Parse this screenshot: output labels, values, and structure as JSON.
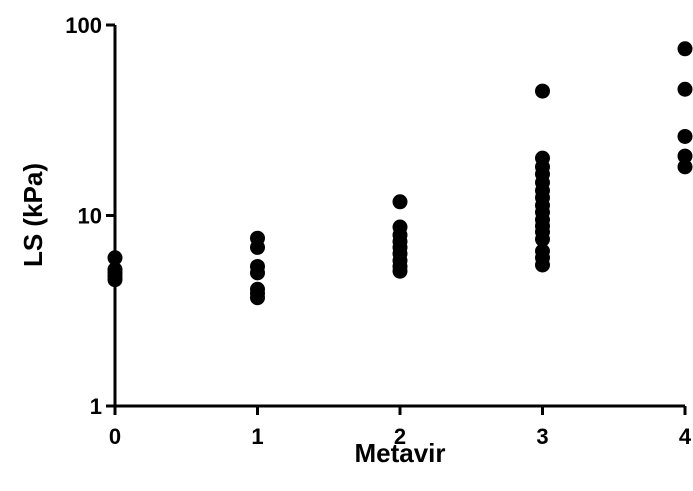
{
  "chart_data": {
    "type": "scatter",
    "title": "",
    "xlabel": "Metavir",
    "ylabel": "LS (kPa)",
    "x_ticks": [
      "0",
      "1",
      "2",
      "3",
      "4"
    ],
    "y_ticks": [
      "1",
      "10",
      "100"
    ],
    "xlim": [
      0,
      4
    ],
    "ylim": [
      1,
      100
    ],
    "y_scale": "log",
    "grid": false,
    "legend": "none",
    "marker_color": "#000000",
    "groups": [
      {
        "x": 0,
        "values": [
          4.6,
          4.8,
          5.0,
          5.2,
          6.0
        ]
      },
      {
        "x": 1,
        "values": [
          3.7,
          3.9,
          4.1,
          5.0,
          5.4,
          6.8,
          7.6
        ]
      },
      {
        "x": 2,
        "values": [
          5.1,
          5.4,
          5.8,
          6.3,
          6.8,
          7.3,
          7.9,
          8.7,
          11.8
        ]
      },
      {
        "x": 3,
        "values": [
          5.5,
          6.0,
          6.5,
          7.5,
          8.2,
          8.8,
          9.5,
          10.4,
          11.3,
          12.4,
          13.5,
          14.9,
          16.5,
          18.0,
          20.0,
          45.0
        ]
      },
      {
        "x": 4,
        "values": [
          18.0,
          20.5,
          26.0,
          46.0,
          75.0
        ]
      }
    ]
  }
}
